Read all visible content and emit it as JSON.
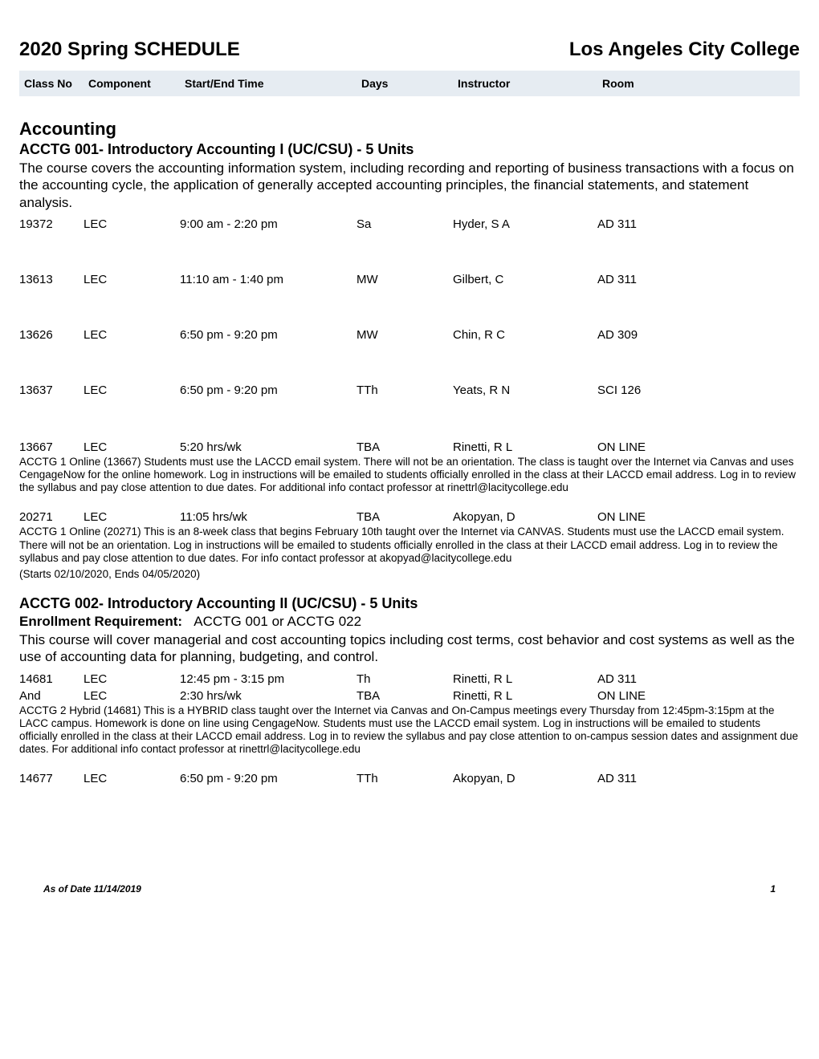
{
  "header": {
    "title_left": "2020 Spring SCHEDULE",
    "title_right": "Los Angeles City College",
    "columns": {
      "class_no": "Class No",
      "component": "Component",
      "time": "Start/End Time",
      "days": "Days",
      "instructor": "Instructor",
      "room": "Room"
    }
  },
  "subject": {
    "title": "Accounting"
  },
  "course1": {
    "title": "ACCTG 001- Introductory Accounting I (UC/CSU) - 5 Units",
    "desc": "The course covers the accounting information system, including recording and reporting of business transactions with a focus on the accounting cycle, the application of generally accepted accounting principles, the financial statements, and statement analysis.",
    "rows": [
      {
        "class_no": "19372",
        "component": "LEC",
        "time": "9:00 am - 2:20 pm",
        "days": "Sa",
        "instructor": "Hyder, S A",
        "room": "AD 311"
      },
      {
        "class_no": "13613",
        "component": "LEC",
        "time": "11:10 am - 1:40 pm",
        "days": "MW",
        "instructor": "Gilbert, C",
        "room": "AD 311"
      },
      {
        "class_no": "13626",
        "component": "LEC",
        "time": "6:50 pm - 9:20 pm",
        "days": "MW",
        "instructor": "Chin, R C",
        "room": "AD 309"
      },
      {
        "class_no": "13637",
        "component": "LEC",
        "time": "6:50 pm - 9:20 pm",
        "days": "TTh",
        "instructor": "Yeats, R N",
        "room": "SCI 126"
      }
    ],
    "row5": {
      "class_no": "13667",
      "component": "LEC",
      "time": "5:20 hrs/wk",
      "days": "TBA",
      "instructor": "Rinetti, R L",
      "room": "ON LINE"
    },
    "note5": "ACCTG 1 Online (13667) Students must use the LACCD email system. There will not be an orientation. The class is taught over the Internet via Canvas and uses CengageNow for the online homework.  Log in instructions will be emailed to students officially enrolled in the class at their LACCD email address. Log in to review the syllabus and pay close attention to due dates. For additional info contact professor at rinettrl@lacitycollege.edu",
    "row6": {
      "class_no": "20271",
      "component": "LEC",
      "time": "11:05 hrs/wk",
      "days": "TBA",
      "instructor": "Akopyan, D",
      "room": "ON LINE"
    },
    "note6": "ACCTG 1 Online (20271) This is an 8-week class that begins February 10th taught over the Internet via CANVAS. Students must use the LACCD email system. There will not be an orientation. Log in instructions will be emailed to students officially enrolled in the class at their LACCD email address. Log in to review the syllabus and pay close attention to due dates. For info contact professor at akopyad@lacitycollege.edu",
    "note6b": "(Starts 02/10/2020, Ends 04/05/2020)"
  },
  "course2": {
    "title": "ACCTG 002- Introductory Accounting II (UC/CSU) - 5 Units",
    "enroll_label": "Enrollment Requirement:",
    "enroll_text": "ACCTG 001 or ACCTG 022",
    "desc": "This course will cover managerial and cost accounting topics including cost terms, cost behavior and cost systems as well as the use of accounting data for planning, budgeting, and control.",
    "row1": {
      "class_no": "14681",
      "component": "LEC",
      "time": "12:45 pm - 3:15 pm",
      "days": "Th",
      "instructor": "Rinetti, R L",
      "room": "AD 311"
    },
    "row1b": {
      "class_no": "And",
      "component": "LEC",
      "time": "2:30 hrs/wk",
      "days": "TBA",
      "instructor": "Rinetti, R L",
      "room": "ON LINE"
    },
    "note1": "ACCTG 2 Hybrid (14681) This is a HYBRID class taught over the Internet via Canvas and On-Campus meetings every Thursday from 12:45pm-3:15pm at the LACC campus. Homework is done on line using CengageNow.  Students must use the LACCD email system. Log in instructions will be emailed to students officially enrolled in the class at their LACCD email address. Log in to review the syllabus and pay close attention to on-campus session dates and assignment due dates. For additional info contact professor at rinettrl@lacitycollege.edu",
    "row2": {
      "class_no": "14677",
      "component": "LEC",
      "time": "6:50 pm - 9:20 pm",
      "days": "TTh",
      "instructor": "Akopyan, D",
      "room": "AD 311"
    }
  },
  "footer": {
    "date": "As of Date 11/14/2019",
    "page": "1"
  }
}
